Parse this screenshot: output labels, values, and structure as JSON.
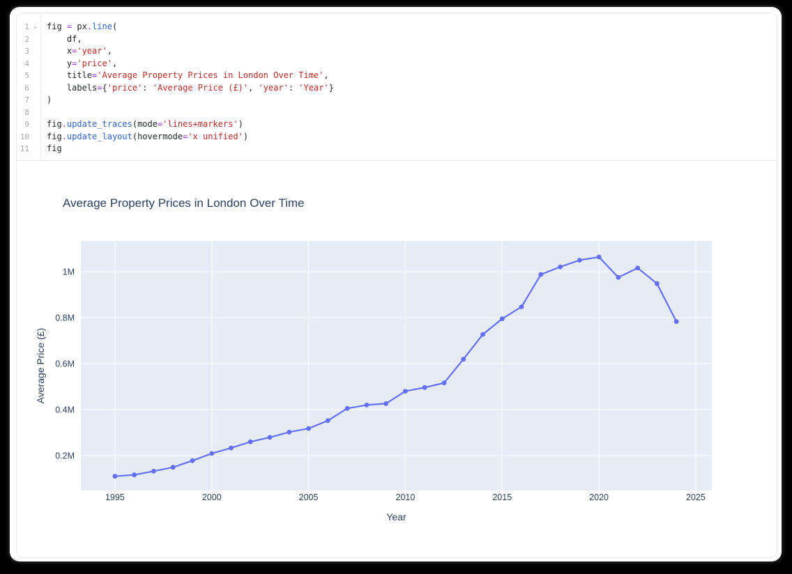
{
  "app": {
    "title": "Notebook code cell with Plotly line chart output"
  },
  "code": {
    "fold_icon": "⌄",
    "colors": {
      "default": "#1f2328",
      "operator": "#9a35ce",
      "function": "#2e62d1",
      "string": "#bb2b26",
      "line_number": "#a3a7ad",
      "border": "#e8e8ec"
    },
    "lines": [
      {
        "n": "1",
        "fold": true,
        "tokens": [
          [
            "t",
            "fig "
          ],
          [
            "op",
            "="
          ],
          [
            "t",
            " px"
          ],
          [
            "op",
            "."
          ],
          [
            "fn",
            "line"
          ],
          [
            "t",
            "("
          ]
        ]
      },
      {
        "n": "2",
        "fold": false,
        "tokens": [
          [
            "t",
            "    df,"
          ]
        ]
      },
      {
        "n": "3",
        "fold": false,
        "tokens": [
          [
            "t",
            "    x"
          ],
          [
            "op",
            "="
          ],
          [
            "s",
            "'year'"
          ],
          [
            "t",
            ","
          ]
        ]
      },
      {
        "n": "4",
        "fold": false,
        "tokens": [
          [
            "t",
            "    y"
          ],
          [
            "op",
            "="
          ],
          [
            "s",
            "'price'"
          ],
          [
            "t",
            ","
          ]
        ]
      },
      {
        "n": "5",
        "fold": false,
        "tokens": [
          [
            "t",
            "    title"
          ],
          [
            "op",
            "="
          ],
          [
            "s",
            "'Average Property Prices in London Over Time'"
          ],
          [
            "t",
            ","
          ]
        ]
      },
      {
        "n": "6",
        "fold": false,
        "tokens": [
          [
            "t",
            "    labels"
          ],
          [
            "op",
            "="
          ],
          [
            "t",
            "{"
          ],
          [
            "s",
            "'price'"
          ],
          [
            "t",
            ": "
          ],
          [
            "s",
            "'Average Price (£)'"
          ],
          [
            "t",
            ", "
          ],
          [
            "s",
            "'year'"
          ],
          [
            "t",
            ": "
          ],
          [
            "s",
            "'Year'"
          ],
          [
            "t",
            "}"
          ]
        ]
      },
      {
        "n": "7",
        "fold": false,
        "tokens": [
          [
            "t",
            ")"
          ]
        ]
      },
      {
        "n": "8",
        "fold": false,
        "tokens": []
      },
      {
        "n": "9",
        "fold": false,
        "tokens": [
          [
            "t",
            "fig"
          ],
          [
            "op",
            "."
          ],
          [
            "fn",
            "update_traces"
          ],
          [
            "t",
            "(mode"
          ],
          [
            "op",
            "="
          ],
          [
            "s",
            "'lines+markers'"
          ],
          [
            "t",
            ")"
          ]
        ]
      },
      {
        "n": "10",
        "fold": false,
        "tokens": [
          [
            "t",
            "fig"
          ],
          [
            "op",
            "."
          ],
          [
            "fn",
            "update_layout"
          ],
          [
            "t",
            "(hovermode"
          ],
          [
            "op",
            "="
          ],
          [
            "s",
            "'x unified'"
          ],
          [
            "t",
            ")"
          ]
        ]
      },
      {
        "n": "11",
        "fold": false,
        "tokens": [
          [
            "t",
            "fig"
          ]
        ]
      }
    ]
  },
  "chart_data": {
    "type": "line",
    "mode": "lines+markers",
    "title": "Average Property Prices in London Over Time",
    "xlabel": "Year",
    "ylabel": "Average Price (£)",
    "series_name": "price",
    "x": [
      1995,
      1996,
      1997,
      1998,
      1999,
      2000,
      2001,
      2002,
      2003,
      2004,
      2005,
      2006,
      2007,
      2008,
      2009,
      2010,
      2011,
      2012,
      2013,
      2014,
      2015,
      2016,
      2017,
      2018,
      2019,
      2020,
      2021,
      2022,
      2023,
      2024
    ],
    "y": [
      110000,
      116000,
      132000,
      149000,
      178000,
      209000,
      233000,
      260000,
      279000,
      302000,
      318000,
      352000,
      405000,
      420000,
      426000,
      480000,
      496000,
      516000,
      619000,
      727000,
      795000,
      847000,
      988000,
      1021000,
      1050000,
      1064000,
      975000,
      1016000,
      948000,
      783000
    ],
    "xticks": {
      "values": [
        1995,
        2000,
        2005,
        2010,
        2015,
        2020,
        2025
      ],
      "labels": [
        "1995",
        "2000",
        "2005",
        "2010",
        "2015",
        "2020",
        "2025"
      ]
    },
    "yticks": {
      "values": [
        200000,
        400000,
        600000,
        800000,
        1000000
      ],
      "labels": [
        "0.2M",
        "0.4M",
        "0.6M",
        "0.8M",
        "1M"
      ]
    },
    "xlim": [
      1993.24,
      2025.83
    ],
    "ylim": [
      48500,
      1133300
    ],
    "grid": true,
    "legend": "none",
    "line_color": "#636efa",
    "plot_bgcolor": "#e5ecf6",
    "grid_color": "#ffffff",
    "text_color": "#2a3f5f"
  }
}
